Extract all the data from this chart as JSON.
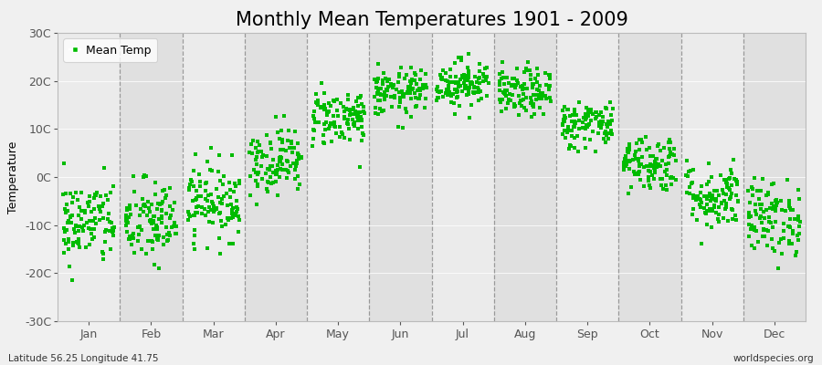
{
  "title": "Monthly Mean Temperatures 1901 - 2009",
  "ylabel": "Temperature",
  "subtitle_left": "Latitude 56.25 Longitude 41.75",
  "subtitle_right": "worldspecies.org",
  "ylim": [
    -30,
    30
  ],
  "ytick_labels": [
    "-30C",
    "-20C",
    "-10C",
    "0C",
    "10C",
    "20C",
    "30C"
  ],
  "ytick_values": [
    -30,
    -20,
    -10,
    0,
    10,
    20,
    30
  ],
  "months": [
    "Jan",
    "Feb",
    "Mar",
    "Apr",
    "May",
    "Jun",
    "Jul",
    "Aug",
    "Sep",
    "Oct",
    "Nov",
    "Dec"
  ],
  "dot_color": "#00BB00",
  "dot_size": 8,
  "legend_label": "Mean Temp",
  "background_color": "#f0f0f0",
  "plot_bg_color": "#e8e8e8",
  "band_color_light": "#ebebeb",
  "band_color_dark": "#e0e0e0",
  "grid_color": "#888888",
  "n_years": 109,
  "monthly_mean_temps": [
    -9.5,
    -9.5,
    -5.0,
    3.5,
    12.5,
    17.5,
    19.5,
    17.5,
    11.0,
    3.0,
    -4.0,
    -8.5
  ],
  "monthly_std_temps": [
    4.5,
    4.5,
    4.0,
    3.5,
    3.0,
    2.5,
    2.5,
    2.5,
    2.5,
    3.0,
    3.5,
    4.0
  ],
  "title_fontsize": 15,
  "label_fontsize": 9,
  "tick_fontsize": 9
}
